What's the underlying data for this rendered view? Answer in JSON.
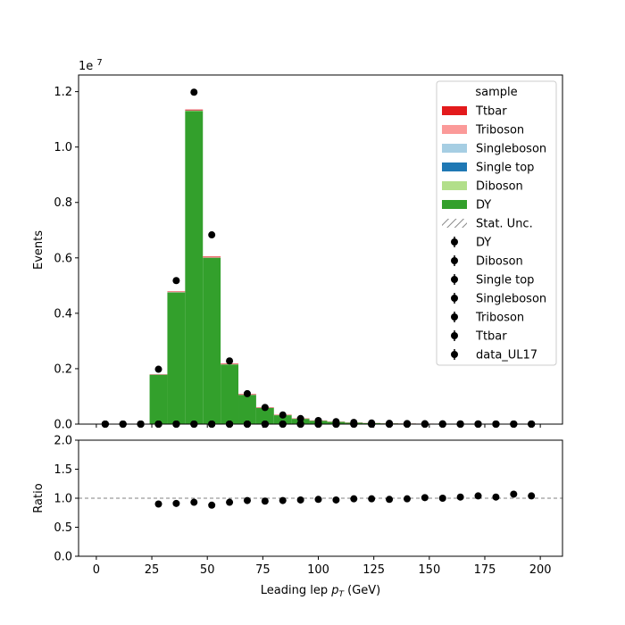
{
  "chart_data": [
    {
      "type": "bar",
      "subtype": "stacked-histogram-with-data-points",
      "xlabel_text": "Leading lep ",
      "xlabel_symbol": "p",
      "xlabel_sub": "T",
      "xlabel_unit": " (GeV)",
      "ylabel": "Events",
      "offset_text": "1e7",
      "xlim": [
        -8,
        210
      ],
      "ylim": [
        0,
        1.26
      ],
      "y_scale_factor": 10000000,
      "x_ticks": [
        0,
        25,
        50,
        75,
        100,
        125,
        150,
        175,
        200
      ],
      "y_ticks": [
        0.0,
        0.2,
        0.4,
        0.6,
        0.8,
        1.0,
        1.2
      ],
      "y_tick_labels": [
        "0.0",
        "0.2",
        "0.4",
        "0.6",
        "0.8",
        "1.0",
        "1.2"
      ],
      "x_tick_labels": [
        "0",
        "25",
        "50",
        "75",
        "100",
        "125",
        "150",
        "175",
        "200"
      ],
      "bin_edges": [
        0,
        8,
        16,
        24,
        32,
        40,
        48,
        56,
        64,
        72,
        80,
        88,
        96,
        104,
        112,
        120,
        128,
        136,
        144,
        152,
        160,
        168,
        176,
        184,
        192,
        200
      ],
      "stack_series": [
        {
          "name": "DY",
          "color": "#33a02c",
          "values": [
            0,
            0,
            0,
            0.178,
            0.475,
            1.13,
            0.6,
            0.215,
            0.105,
            0.058,
            0.032,
            0.019,
            0.012,
            0.008,
            0.005,
            0.0035,
            0.0025,
            0.0018,
            0.0013,
            0.001,
            0.0008,
            0.0006,
            0.0005,
            0.0004,
            0.0003
          ]
        },
        {
          "name": "Diboson",
          "color": "#b2df8a",
          "values": [
            0,
            0,
            0,
            0.0005,
            0.001,
            0.0015,
            0.001,
            0.0008,
            0.0006,
            0.0005,
            0.0004,
            0.0003,
            0.0003,
            0.0002,
            0.0002,
            0.0002,
            0.0001,
            0.0001,
            0.0001,
            0.0001,
            0.0001,
            0.0001,
            0.0001,
            0.0001,
            0.0001
          ]
        },
        {
          "name": "Single top",
          "color": "#1f78b4",
          "values": [
            0,
            0,
            0,
            0.0002,
            0.0004,
            0.0005,
            0.0005,
            0.0004,
            0.0003,
            0.0003,
            0.0002,
            0.0002,
            0.0002,
            0.0001,
            0.0001,
            0.0001,
            0.0001,
            0.0001,
            0.0001,
            0.0001,
            0,
            0,
            0,
            0,
            0
          ]
        },
        {
          "name": "Singleboson",
          "color": "#a6cee3",
          "values": [
            0,
            0,
            0,
            0.0001,
            0.0002,
            0.0003,
            0.0002,
            0.0001,
            0.0001,
            0.0001,
            0.0001,
            0,
            0,
            0,
            0,
            0,
            0,
            0,
            0,
            0,
            0,
            0,
            0,
            0,
            0
          ]
        },
        {
          "name": "Triboson",
          "color": "#fb9a99",
          "values": [
            0,
            0,
            0,
            0,
            0,
            0,
            0,
            0,
            0,
            0,
            0,
            0,
            0,
            0,
            0,
            0,
            0,
            0,
            0,
            0,
            0,
            0,
            0,
            0,
            0
          ]
        },
        {
          "name": "Ttbar",
          "color": "#e31a1c",
          "values": [
            0,
            0,
            0,
            0.001,
            0.002,
            0.003,
            0.003,
            0.002,
            0.002,
            0.0015,
            0.0012,
            0.001,
            0.0008,
            0.0006,
            0.0005,
            0.0004,
            0.0003,
            0.0003,
            0.0002,
            0.0002,
            0.0002,
            0.0001,
            0.0001,
            0.0001,
            0.0001
          ]
        }
      ],
      "data_series": [
        {
          "name": "DY",
          "x": [
            4,
            12,
            20,
            28,
            36,
            44,
            52,
            60,
            68,
            76,
            84,
            92,
            100,
            108,
            116,
            124,
            132,
            140,
            148,
            156,
            164,
            172,
            180,
            188,
            196
          ],
          "y": [
            0,
            0,
            0,
            0.198,
            0.518,
            1.198,
            0.683,
            0.228,
            0.11,
            0.06,
            0.033,
            0.02,
            0.013,
            0.009,
            0.006,
            0.004,
            0.003,
            0.002,
            0.0015,
            0.0011,
            0.0009,
            0.0007,
            0.0005,
            0.0004,
            0.0003
          ]
        },
        {
          "name": "Diboson",
          "x": [
            4,
            12,
            20,
            28,
            36,
            44,
            52,
            60,
            68,
            76,
            84,
            92,
            100,
            108,
            116,
            124,
            132,
            140,
            148,
            156,
            164,
            172,
            180,
            188,
            196
          ],
          "y": [
            0,
            0,
            0,
            0,
            0,
            0,
            0,
            0,
            0,
            0,
            0,
            0,
            0,
            0,
            0,
            0,
            0,
            0,
            0,
            0,
            0,
            0,
            0,
            0,
            0
          ]
        },
        {
          "name": "Single top",
          "x": [
            4,
            12,
            20,
            28,
            36,
            44,
            52,
            60,
            68,
            76,
            84,
            92,
            100,
            108,
            116,
            124,
            132,
            140,
            148,
            156,
            164,
            172,
            180,
            188,
            196
          ],
          "y": [
            0,
            0,
            0,
            0,
            0,
            0,
            0,
            0,
            0,
            0,
            0,
            0,
            0,
            0,
            0,
            0,
            0,
            0,
            0,
            0,
            0,
            0,
            0,
            0,
            0
          ]
        },
        {
          "name": "Singleboson",
          "x": [
            4,
            12,
            20,
            28,
            36,
            44,
            52,
            60,
            68,
            76,
            84,
            92,
            100,
            108,
            116,
            124,
            132,
            140,
            148,
            156,
            164,
            172,
            180,
            188,
            196
          ],
          "y": [
            0,
            0,
            0,
            0,
            0,
            0,
            0,
            0,
            0,
            0,
            0,
            0,
            0,
            0,
            0,
            0,
            0,
            0,
            0,
            0,
            0,
            0,
            0,
            0,
            0
          ]
        },
        {
          "name": "Triboson",
          "x": [
            4,
            12,
            20,
            28,
            36,
            44,
            52,
            60,
            68,
            76,
            84,
            92,
            100,
            108,
            116,
            124,
            132,
            140,
            148,
            156,
            164,
            172,
            180,
            188,
            196
          ],
          "y": [
            0,
            0,
            0,
            0,
            0,
            0,
            0,
            0,
            0,
            0,
            0,
            0,
            0,
            0,
            0,
            0,
            0,
            0,
            0,
            0,
            0,
            0,
            0,
            0,
            0
          ]
        },
        {
          "name": "Ttbar",
          "x": [
            4,
            12,
            20,
            28,
            36,
            44,
            52,
            60,
            68,
            76,
            84,
            92,
            100,
            108,
            116,
            124,
            132,
            140,
            148,
            156,
            164,
            172,
            180,
            188,
            196
          ],
          "y": [
            0,
            0,
            0,
            0,
            0,
            0,
            0,
            0,
            0,
            0,
            0,
            0,
            0,
            0,
            0,
            0,
            0,
            0,
            0,
            0,
            0,
            0,
            0,
            0,
            0
          ]
        },
        {
          "name": "data_UL17",
          "x": [
            4,
            12,
            20,
            28,
            36,
            44,
            52,
            60,
            68,
            76,
            84,
            92,
            100,
            108,
            116,
            124,
            132,
            140,
            148,
            156,
            164,
            172,
            180,
            188,
            196
          ],
          "y": [
            0,
            0,
            0,
            0,
            0,
            0,
            0,
            0,
            0,
            0,
            0,
            0,
            0,
            0,
            0,
            0,
            0,
            0,
            0,
            0,
            0,
            0,
            0,
            0,
            0
          ]
        }
      ],
      "legend": {
        "title": "sample",
        "placement": "top-right",
        "entries": [
          {
            "label": "Ttbar",
            "kind": "patch",
            "color": "#e31a1c"
          },
          {
            "label": "Triboson",
            "kind": "patch",
            "color": "#fb9a99"
          },
          {
            "label": "Singleboson",
            "kind": "patch",
            "color": "#a6cee3"
          },
          {
            "label": "Single top",
            "kind": "patch",
            "color": "#1f78b4"
          },
          {
            "label": "Diboson",
            "kind": "patch",
            "color": "#b2df8a"
          },
          {
            "label": "DY",
            "kind": "patch",
            "color": "#33a02c"
          },
          {
            "label": "Stat. Unc.",
            "kind": "hatch",
            "color": "#888888"
          },
          {
            "label": "DY",
            "kind": "errorbar",
            "color": "#000000"
          },
          {
            "label": "Diboson",
            "kind": "errorbar",
            "color": "#000000"
          },
          {
            "label": "Single top",
            "kind": "errorbar",
            "color": "#000000"
          },
          {
            "label": "Singleboson",
            "kind": "errorbar",
            "color": "#000000"
          },
          {
            "label": "Triboson",
            "kind": "errorbar",
            "color": "#000000"
          },
          {
            "label": "Ttbar",
            "kind": "errorbar",
            "color": "#000000"
          },
          {
            "label": "data_UL17",
            "kind": "errorbar",
            "color": "#000000"
          }
        ]
      }
    },
    {
      "type": "scatter",
      "ylabel": "Ratio",
      "xlim": [
        -8,
        210
      ],
      "ylim": [
        0,
        2
      ],
      "y_ticks": [
        0.0,
        0.5,
        1.0,
        1.5,
        2.0
      ],
      "y_tick_labels": [
        "0.0",
        "0.5",
        "1.0",
        "1.5",
        "2.0"
      ],
      "reference_line": 1.0,
      "x": [
        28,
        36,
        44,
        52,
        60,
        68,
        76,
        84,
        92,
        100,
        108,
        116,
        124,
        132,
        140,
        148,
        156,
        164,
        172,
        180,
        188,
        196
      ],
      "y": [
        0.9,
        0.91,
        0.93,
        0.88,
        0.93,
        0.96,
        0.95,
        0.96,
        0.97,
        0.98,
        0.97,
        0.99,
        0.99,
        0.98,
        0.99,
        1.01,
        1.0,
        1.02,
        1.04,
        1.02,
        1.07,
        1.04
      ]
    }
  ]
}
